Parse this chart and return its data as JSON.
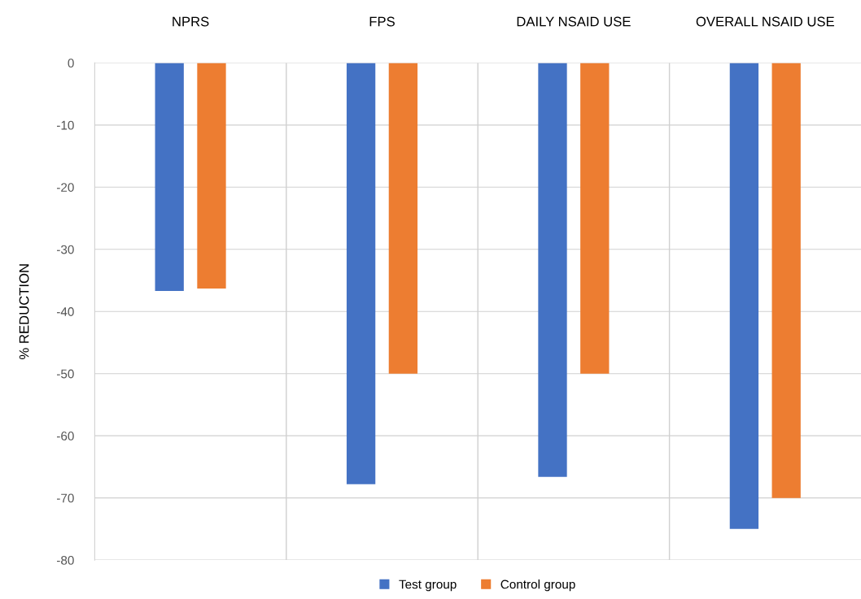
{
  "chart_data": {
    "type": "bar",
    "ylabel": "% REDUCTION",
    "categories": [
      "NPRS",
      "FPS",
      "DAILY NSAID USE",
      "OVERALL NSAID USE"
    ],
    "series": [
      {
        "name": "Test group",
        "color": "#4472c4",
        "values": [
          -36.7,
          -67.8,
          -66.6,
          -75
        ]
      },
      {
        "name": "Control group",
        "color": "#ed7d31",
        "values": [
          -36.3,
          -50,
          -50,
          -70
        ]
      }
    ],
    "ylim": [
      -80,
      0
    ],
    "yticks": [
      -80,
      -70,
      -60,
      -50,
      -40,
      -30,
      -20,
      -10,
      0
    ],
    "grid": true,
    "legend": "bottom"
  }
}
